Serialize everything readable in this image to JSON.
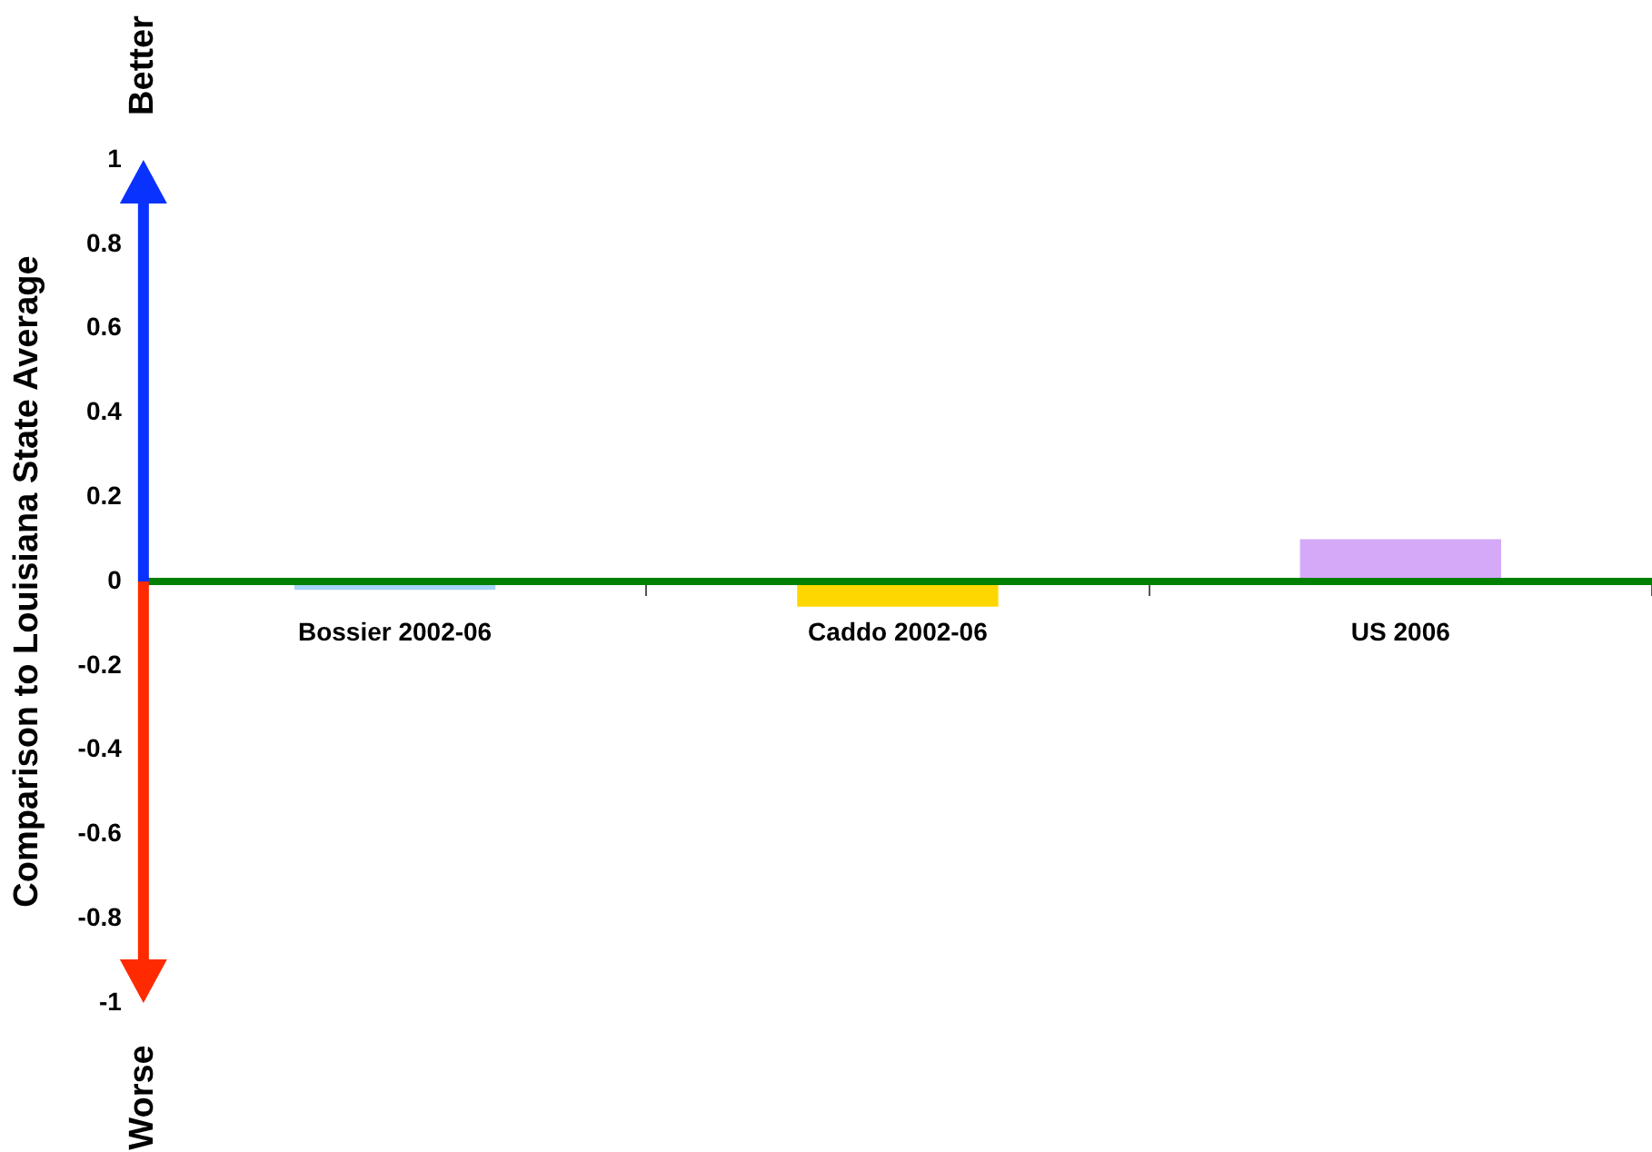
{
  "chart_data": {
    "type": "bar",
    "ylabel": "Comparison to Louisiana State Average",
    "categories": [
      "Bossier 2002-06",
      "Caddo 2002-06",
      "US 2006"
    ],
    "values": [
      -0.02,
      -0.06,
      0.1
    ],
    "colors": [
      "#a6d4f7",
      "#ffd700",
      "#d5a9f8"
    ],
    "ylim": [
      -1,
      1
    ],
    "yticks": [
      -1,
      -0.8,
      -0.6,
      -0.4,
      -0.2,
      0,
      0.2,
      0.4,
      0.6,
      0.8,
      1
    ],
    "grid": false,
    "legend": false,
    "annotations": [
      "Better",
      "Worse"
    ]
  }
}
